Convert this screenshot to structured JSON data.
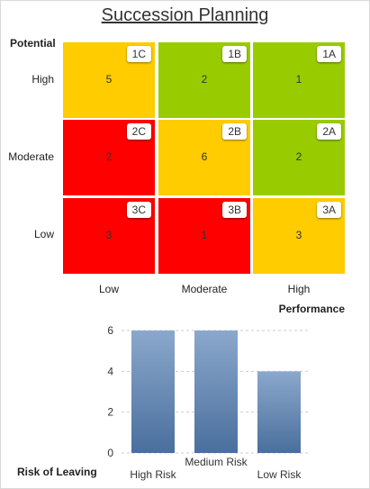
{
  "title": "Succession Planning",
  "grid": {
    "y_axis_label": "Potential",
    "x_axis_label": "Performance",
    "rows": [
      "High",
      "Moderate",
      "Low"
    ],
    "columns": [
      "Low",
      "Moderate",
      "High"
    ],
    "cells": [
      [
        {
          "code": "1C",
          "count": "5",
          "color": "#ffcc00"
        },
        {
          "code": "1B",
          "count": "2",
          "color": "#99cc00"
        },
        {
          "code": "1A",
          "count": "1",
          "color": "#99cc00"
        }
      ],
      [
        {
          "code": "2C",
          "count": "2",
          "color": "#ff0000"
        },
        {
          "code": "2B",
          "count": "6",
          "color": "#ffcc00"
        },
        {
          "code": "2A",
          "count": "2",
          "color": "#99cc00"
        }
      ],
      [
        {
          "code": "3C",
          "count": "3",
          "color": "#ff0000"
        },
        {
          "code": "3B",
          "count": "1",
          "color": "#ff0000"
        },
        {
          "code": "3A",
          "count": "3",
          "color": "#ffcc00"
        }
      ]
    ]
  },
  "chart_data": {
    "type": "bar",
    "xlabel": "Risk of Leaving",
    "ylabel": "",
    "categories": [
      "High Risk",
      "Medium Risk",
      "Low Risk"
    ],
    "values": [
      6,
      6,
      4
    ],
    "ylim": [
      0,
      6
    ],
    "yticks": [
      "0",
      "2",
      "4",
      "6"
    ],
    "grid": "horizontal dashed",
    "bar_color_top": "#8ba8cc",
    "bar_color_bottom": "#4a6f9d"
  }
}
